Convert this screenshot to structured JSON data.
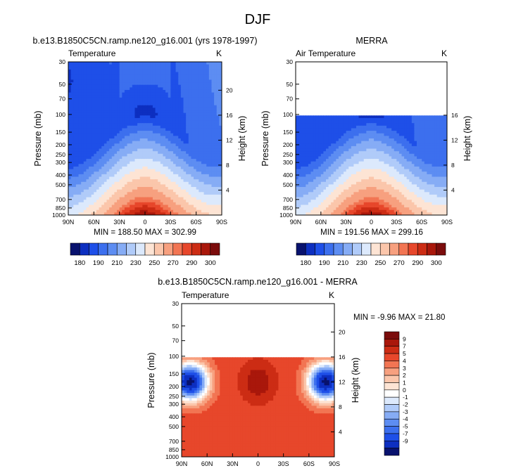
{
  "figure_title": "DJF",
  "colors": {
    "temperature_bar": [
      "#08126e",
      "#0d2fc0",
      "#1e4fe8",
      "#3c6fee",
      "#5d8df2",
      "#86acf5",
      "#b0cbf9",
      "#dce9fc",
      "#fde4d4",
      "#fbc6ab",
      "#f7a07f",
      "#f27553",
      "#e7472b",
      "#cc2c14",
      "#a9170b",
      "#7b0c0c"
    ],
    "difference_bar": [
      "#08126e",
      "#0d2fc0",
      "#1e4fe8",
      "#3c6fee",
      "#5d8df2",
      "#86acf5",
      "#b0cbf9",
      "#dce9fc",
      "#ffffff",
      "#fde4d4",
      "#fbc6ab",
      "#f7a07f",
      "#f27553",
      "#e7472b",
      "#cc2c14",
      "#a9170b",
      "#7b0c0c"
    ]
  },
  "chart_data": [
    {
      "type": "contour",
      "name": "model",
      "title": "b.e13.B1850C5CN.ramp.ne120_g16.001 (yrs 1978-1997)",
      "left_label": "Temperature",
      "right_label": "K",
      "xlabel": "",
      "ylabel": "Pressure (mb)",
      "right_axis_label": "Height (km)",
      "x_ticks": [
        "90N",
        "60N",
        "30N",
        "0",
        "30S",
        "60S",
        "90S"
      ],
      "y_ticks": [
        "30",
        "50",
        "70",
        "100",
        "150",
        "200",
        "250",
        "300",
        "400",
        "500",
        "700",
        "850",
        "1000"
      ],
      "right_ticks": [
        "20",
        "16",
        "12",
        "8",
        "4"
      ],
      "stats_text": "MIN = 188.50   MAX = 302.99",
      "min": 188.5,
      "max": 302.99
    },
    {
      "type": "contour",
      "name": "merra",
      "title": "MERRA",
      "left_label": "Air Temperature",
      "right_label": "K",
      "xlabel": "",
      "ylabel": "Pressure (mb)",
      "right_axis_label": "Height (km)",
      "x_ticks": [
        "90N",
        "60N",
        "30N",
        "0",
        "30S",
        "60S",
        "90S"
      ],
      "y_ticks": [
        "30",
        "50",
        "70",
        "100",
        "150",
        "200",
        "250",
        "300",
        "400",
        "500",
        "700",
        "850",
        "1000"
      ],
      "right_ticks": [
        "16",
        "12",
        "8",
        "4"
      ],
      "data_top_pressure": 100,
      "stats_text": "MIN = 191.56   MAX = 299.16",
      "min": 191.56,
      "max": 299.16
    },
    {
      "type": "contour",
      "name": "difference",
      "title": "b.e13.B1850C5CN.ramp.ne120_g16.001 - MERRA",
      "left_label": "Temperature",
      "right_label": "K",
      "xlabel": "",
      "ylabel": "Pressure (mb)",
      "right_axis_label": "Height (km)",
      "x_ticks": [
        "90N",
        "60N",
        "30N",
        "0",
        "30S",
        "60S",
        "90S"
      ],
      "y_ticks": [
        "30",
        "50",
        "70",
        "100",
        "150",
        "200",
        "250",
        "300",
        "400",
        "500",
        "700",
        "850",
        "1000"
      ],
      "right_ticks": [
        "20",
        "16",
        "12",
        "8",
        "4"
      ],
      "data_top_pressure": 100,
      "stats_text": "MIN =  -9.96   MAX =  21.80",
      "min": -9.96,
      "max": 21.8
    },
    {
      "type": "colorbar",
      "name": "temperature_colorbar",
      "orientation": "horizontal",
      "tick_labels": [
        "180",
        "190",
        "210",
        "230",
        "250",
        "270",
        "290",
        "300"
      ]
    },
    {
      "type": "colorbar",
      "name": "difference_colorbar",
      "orientation": "vertical",
      "tick_labels": [
        "9",
        "7",
        "5",
        "4",
        "3",
        "2",
        "1",
        "0",
        "-1",
        "-2",
        "-3",
        "-4",
        "-5",
        "-7",
        "-9"
      ]
    }
  ]
}
